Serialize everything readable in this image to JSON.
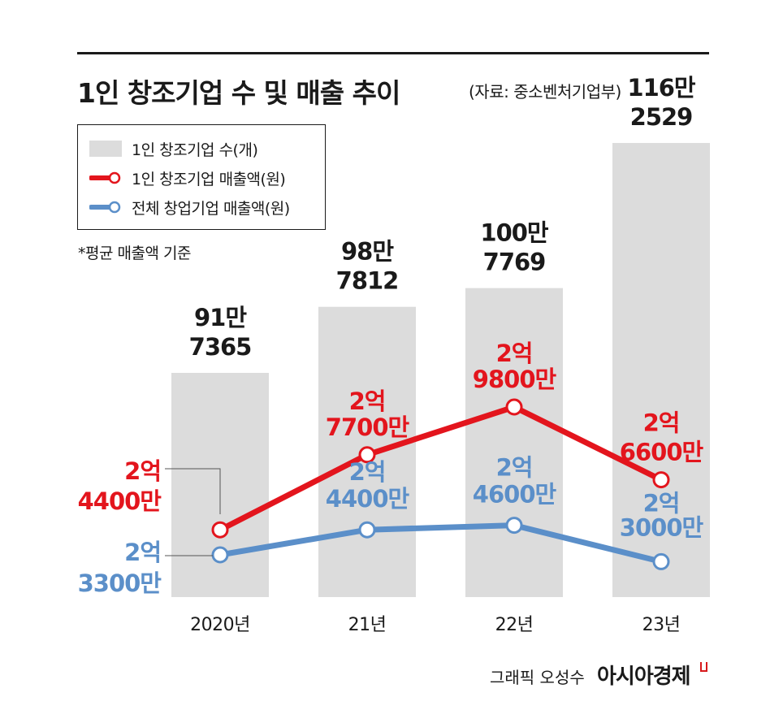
{
  "header": {
    "title": "1인 창조기업 수 및 매출 추이",
    "source": "(자료: 중소벤처기업부)"
  },
  "legend": {
    "bar_label": "1인 창조기업 수(개)",
    "red_label": "1인 창조기업 매출액(원)",
    "blue_label": "전체 창업기업 매출액(원)"
  },
  "note": "*평균 매출액 기준",
  "footer": {
    "credit": "그래픽 오성수",
    "brand": "아시아경제"
  },
  "colors": {
    "bar": "#dcdcdc",
    "red": "#e3151d",
    "blue": "#5b8fc9",
    "text": "#1a1a1a"
  },
  "chart_data": {
    "type": "bar+line",
    "categories": [
      "2020년",
      "21년",
      "22년",
      "23년"
    ],
    "bars": {
      "name": "1인 창조기업 수(개)",
      "values": [
        917365,
        987812,
        1007769,
        1162529
      ],
      "labels": [
        [
          "91만",
          "7365"
        ],
        [
          "98만",
          "7812"
        ],
        [
          "100만",
          "7769"
        ],
        [
          "116만",
          "2529"
        ]
      ]
    },
    "series": [
      {
        "name": "1인 창조기업 매출액(원)",
        "color": "#e3151d",
        "values": [
          244000000,
          277000000,
          298000000,
          266000000
        ],
        "labels": [
          [
            "2억",
            "4400만"
          ],
          [
            "2억",
            "7700만"
          ],
          [
            "2억",
            "9800만"
          ],
          [
            "2억",
            "6600만"
          ]
        ]
      },
      {
        "name": "전체 창업기업 매출액(원)",
        "color": "#5b8fc9",
        "values": [
          233000000,
          244000000,
          246000000,
          230000000
        ],
        "labels": [
          [
            "2억",
            "3300만"
          ],
          [
            "2억",
            "4400만"
          ],
          [
            "2억",
            "4600만"
          ],
          [
            "2억",
            "3000만"
          ]
        ]
      }
    ],
    "grid": false,
    "legend_position": "top-left"
  }
}
